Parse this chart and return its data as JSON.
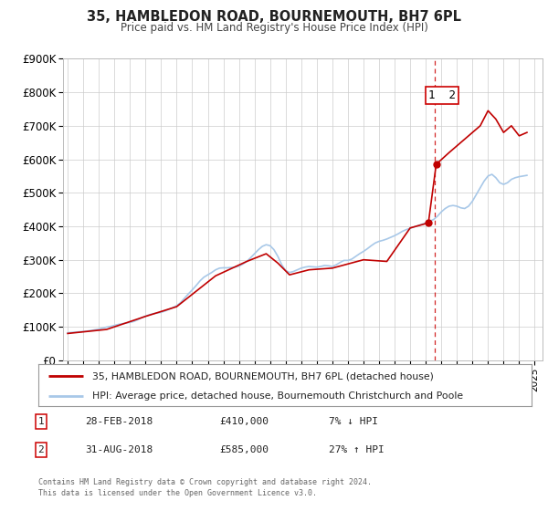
{
  "title": "35, HAMBLEDON ROAD, BOURNEMOUTH, BH7 6PL",
  "subtitle": "Price paid vs. HM Land Registry's House Price Index (HPI)",
  "ylim": [
    0,
    900000
  ],
  "yticks": [
    0,
    100000,
    200000,
    300000,
    400000,
    500000,
    600000,
    700000,
    800000,
    900000
  ],
  "ytick_labels": [
    "£0",
    "£100K",
    "£200K",
    "£300K",
    "£400K",
    "£500K",
    "£600K",
    "£700K",
    "£800K",
    "£900K"
  ],
  "xlim_start": 1994.7,
  "xlim_end": 2025.5,
  "xticks": [
    1995,
    1996,
    1997,
    1998,
    1999,
    2000,
    2001,
    2002,
    2003,
    2004,
    2005,
    2006,
    2007,
    2008,
    2009,
    2010,
    2011,
    2012,
    2013,
    2014,
    2015,
    2016,
    2017,
    2018,
    2019,
    2020,
    2021,
    2022,
    2023,
    2024,
    2025
  ],
  "hpi_color": "#a8c8e8",
  "sold_color": "#c00000",
  "vline_color": "#cc0000",
  "vline_x": 2018.55,
  "legend_label_sold": "35, HAMBLEDON ROAD, BOURNEMOUTH, BH7 6PL (detached house)",
  "legend_label_hpi": "HPI: Average price, detached house, Bournemouth Christchurch and Poole",
  "sale1_label": "1",
  "sale1_date": "28-FEB-2018",
  "sale1_price": "£410,000",
  "sale1_hpi": "7% ↓ HPI",
  "sale2_label": "2",
  "sale2_date": "31-AUG-2018",
  "sale2_price": "£585,000",
  "sale2_hpi": "27% ↑ HPI",
  "sale1_x": 2018.17,
  "sale1_y": 410000,
  "sale2_x": 2018.67,
  "sale2_y": 585000,
  "footnote_line1": "Contains HM Land Registry data © Crown copyright and database right 2024.",
  "footnote_line2": "This data is licensed under the Open Government Licence v3.0.",
  "background_color": "#ffffff",
  "grid_color": "#cccccc",
  "hpi_data_x": [
    1995.0,
    1995.25,
    1995.5,
    1995.75,
    1996.0,
    1996.25,
    1996.5,
    1996.75,
    1997.0,
    1997.25,
    1997.5,
    1997.75,
    1998.0,
    1998.25,
    1998.5,
    1998.75,
    1999.0,
    1999.25,
    1999.5,
    1999.75,
    2000.0,
    2000.25,
    2000.5,
    2000.75,
    2001.0,
    2001.25,
    2001.5,
    2001.75,
    2002.0,
    2002.25,
    2002.5,
    2002.75,
    2003.0,
    2003.25,
    2003.5,
    2003.75,
    2004.0,
    2004.25,
    2004.5,
    2004.75,
    2005.0,
    2005.25,
    2005.5,
    2005.75,
    2006.0,
    2006.25,
    2006.5,
    2006.75,
    2007.0,
    2007.25,
    2007.5,
    2007.75,
    2008.0,
    2008.25,
    2008.5,
    2008.75,
    2009.0,
    2009.25,
    2009.5,
    2009.75,
    2010.0,
    2010.25,
    2010.5,
    2010.75,
    2011.0,
    2011.25,
    2011.5,
    2011.75,
    2012.0,
    2012.25,
    2012.5,
    2012.75,
    2013.0,
    2013.25,
    2013.5,
    2013.75,
    2014.0,
    2014.25,
    2014.5,
    2014.75,
    2015.0,
    2015.25,
    2015.5,
    2015.75,
    2016.0,
    2016.25,
    2016.5,
    2016.75,
    2017.0,
    2017.25,
    2017.5,
    2017.75,
    2018.0,
    2018.25,
    2018.5,
    2018.75,
    2019.0,
    2019.25,
    2019.5,
    2019.75,
    2020.0,
    2020.25,
    2020.5,
    2020.75,
    2021.0,
    2021.25,
    2021.5,
    2021.75,
    2022.0,
    2022.25,
    2022.5,
    2022.75,
    2023.0,
    2023.25,
    2023.5,
    2023.75,
    2024.0,
    2024.25,
    2024.5
  ],
  "hpi_data_y": [
    82000,
    83000,
    84000,
    85000,
    86000,
    87000,
    89000,
    91000,
    93000,
    96000,
    99000,
    101000,
    104000,
    107000,
    109000,
    111000,
    113000,
    116000,
    121000,
    127000,
    132000,
    136000,
    139000,
    141000,
    143000,
    147000,
    152000,
    157000,
    163000,
    172000,
    185000,
    198000,
    210000,
    223000,
    237000,
    248000,
    255000,
    262000,
    270000,
    275000,
    276000,
    276000,
    277000,
    278000,
    281000,
    287000,
    295000,
    306000,
    318000,
    330000,
    340000,
    345000,
    342000,
    330000,
    310000,
    285000,
    268000,
    262000,
    265000,
    270000,
    275000,
    278000,
    280000,
    279000,
    278000,
    280000,
    283000,
    282000,
    280000,
    285000,
    292000,
    298000,
    298000,
    302000,
    310000,
    318000,
    325000,
    333000,
    342000,
    350000,
    355000,
    358000,
    362000,
    367000,
    372000,
    378000,
    385000,
    390000,
    394000,
    398000,
    402000,
    406000,
    410000,
    415000,
    420000,
    430000,
    443000,
    453000,
    460000,
    462000,
    460000,
    455000,
    453000,
    460000,
    475000,
    495000,
    515000,
    535000,
    550000,
    555000,
    545000,
    530000,
    525000,
    530000,
    540000,
    545000,
    548000,
    550000,
    552000
  ],
  "sold_data_x": [
    1995.0,
    1997.5,
    2000.0,
    2002.0,
    2004.5,
    2006.5,
    2007.75,
    2008.5,
    2009.25,
    2010.5,
    2012.0,
    2014.0,
    2015.5,
    2017.0,
    2018.17,
    2018.67,
    2019.5,
    2020.5,
    2021.5,
    2022.0,
    2022.5,
    2023.0,
    2023.5,
    2024.0,
    2024.5
  ],
  "sold_data_y": [
    80000,
    92000,
    131000,
    160000,
    252000,
    295000,
    318000,
    290000,
    255000,
    270000,
    275000,
    300000,
    295000,
    395000,
    410000,
    585000,
    620000,
    660000,
    700000,
    745000,
    720000,
    680000,
    700000,
    670000,
    680000
  ]
}
